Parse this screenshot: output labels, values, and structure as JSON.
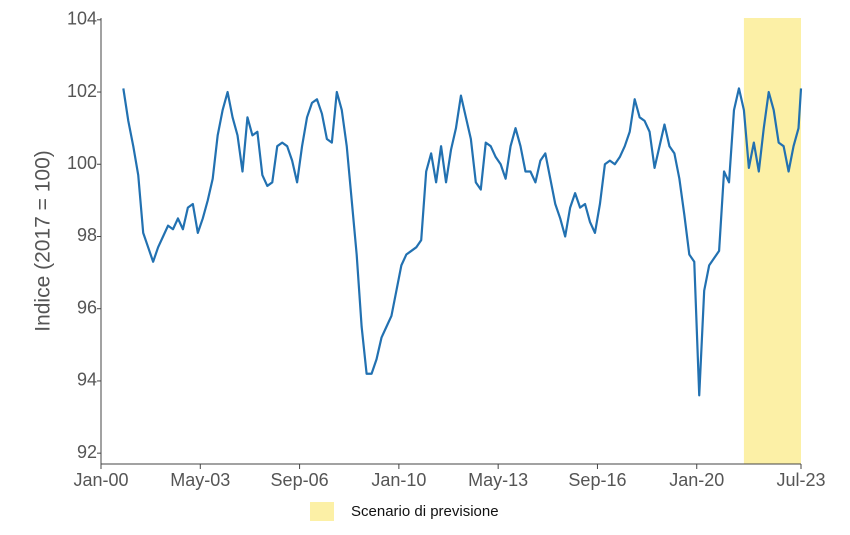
{
  "chart_data": {
    "type": "line",
    "ylabel": "Indice (2017 = 100)",
    "x": [
      "2000-10",
      "2000-12",
      "2001-02",
      "2001-04",
      "2001-06",
      "2001-08",
      "2001-10",
      "2001-12",
      "2002-02",
      "2002-04",
      "2002-06",
      "2002-08",
      "2002-10",
      "2002-12",
      "2003-02",
      "2003-04",
      "2003-06",
      "2003-08",
      "2003-10",
      "2003-12",
      "2004-02",
      "2004-04",
      "2004-06",
      "2004-08",
      "2004-10",
      "2004-12",
      "2005-02",
      "2005-04",
      "2005-06",
      "2005-08",
      "2005-10",
      "2005-12",
      "2006-02",
      "2006-04",
      "2006-06",
      "2006-08",
      "2006-10",
      "2006-12",
      "2007-02",
      "2007-04",
      "2007-06",
      "2007-08",
      "2007-10",
      "2007-12",
      "2008-02",
      "2008-04",
      "2008-06",
      "2008-08",
      "2008-10",
      "2008-12",
      "2009-02",
      "2009-04",
      "2009-06",
      "2009-08",
      "2009-10",
      "2009-12",
      "2010-02",
      "2010-04",
      "2010-06",
      "2010-08",
      "2010-10",
      "2010-12",
      "2011-02",
      "2011-04",
      "2011-06",
      "2011-08",
      "2011-10",
      "2011-12",
      "2012-02",
      "2012-04",
      "2012-06",
      "2012-08",
      "2012-10",
      "2012-12",
      "2013-02",
      "2013-04",
      "2013-06",
      "2013-08",
      "2013-10",
      "2013-12",
      "2014-02",
      "2014-04",
      "2014-06",
      "2014-08",
      "2014-10",
      "2014-12",
      "2015-02",
      "2015-04",
      "2015-06",
      "2015-08",
      "2015-10",
      "2015-12",
      "2016-02",
      "2016-04",
      "2016-06",
      "2016-08",
      "2016-10",
      "2016-12",
      "2017-02",
      "2017-04",
      "2017-06",
      "2017-08",
      "2017-10",
      "2017-12",
      "2018-02",
      "2018-04",
      "2018-06",
      "2018-08",
      "2018-10",
      "2018-12",
      "2019-02",
      "2019-04",
      "2019-06",
      "2019-08",
      "2019-10",
      "2019-12",
      "2020-02",
      "2020-04",
      "2020-06",
      "2020-08",
      "2020-10",
      "2020-12",
      "2021-02",
      "2021-04",
      "2021-06",
      "2021-08",
      "2021-10",
      "2021-12",
      "2022-02",
      "2022-04",
      "2022-06",
      "2022-08",
      "2022-10",
      "2022-12",
      "2023-02",
      "2023-04",
      "2023-06",
      "2023-07"
    ],
    "series": [
      {
        "color": "#2271b1",
        "values": [
          102.1,
          101.2,
          100.5,
          99.7,
          98.1,
          97.7,
          97.3,
          97.7,
          98.0,
          98.3,
          98.2,
          98.5,
          98.2,
          98.8,
          98.9,
          98.1,
          98.5,
          99.0,
          99.6,
          100.8,
          101.5,
          102.0,
          101.3,
          100.8,
          99.8,
          101.3,
          100.8,
          100.9,
          99.7,
          99.4,
          99.5,
          100.5,
          100.6,
          100.5,
          100.1,
          99.5,
          100.5,
          101.3,
          101.7,
          101.8,
          101.4,
          100.7,
          100.6,
          102.0,
          101.5,
          100.5,
          99.0,
          97.5,
          95.5,
          94.2,
          94.2,
          94.6,
          95.2,
          95.5,
          95.8,
          96.5,
          97.2,
          97.5,
          97.6,
          97.7,
          97.9,
          99.8,
          100.3,
          99.5,
          100.5,
          99.5,
          100.4,
          101.0,
          101.9,
          101.3,
          100.7,
          99.5,
          99.3,
          100.6,
          100.5,
          100.2,
          100.0,
          99.6,
          100.5,
          101.0,
          100.5,
          99.8,
          99.8,
          99.5,
          100.1,
          100.3,
          99.6,
          98.9,
          98.5,
          98.0,
          98.8,
          99.2,
          98.8,
          98.9,
          98.4,
          98.1,
          98.9,
          100.0,
          100.1,
          100.0,
          100.2,
          100.5,
          100.9,
          101.8,
          101.3,
          101.2,
          100.9,
          99.9,
          100.5,
          101.1,
          100.5,
          100.3,
          99.6,
          98.6,
          97.5,
          97.3,
          93.6,
          96.5,
          97.2,
          97.4,
          97.6,
          99.8,
          99.5,
          101.5,
          102.1,
          101.5,
          99.9,
          100.6,
          99.8,
          101.0,
          102.0,
          101.5,
          100.6,
          100.5,
          99.8,
          100.5,
          101.0,
          102.1
        ]
      }
    ],
    "band": {
      "name": "Scenario di previsione",
      "color": "#fcf0a6",
      "x": [
        "2021-08",
        "2023-07"
      ]
    },
    "xlim": [
      "2000-01",
      "2023-07"
    ],
    "xticks": [
      {
        "value": "2000-01",
        "label": "Jan-00"
      },
      {
        "value": "2003-05",
        "label": "May-03"
      },
      {
        "value": "2006-09",
        "label": "Sep-06"
      },
      {
        "value": "2010-01",
        "label": "Jan-10"
      },
      {
        "value": "2013-05",
        "label": "May-13"
      },
      {
        "value": "2016-09",
        "label": "Sep-16"
      },
      {
        "value": "2020-01",
        "label": "Jan-20"
      },
      {
        "value": "2023-07",
        "label": "Jul-23"
      }
    ],
    "ylim": [
      91.7,
      104.05
    ],
    "yticks": [
      92,
      94,
      96,
      98,
      100,
      102,
      104
    ]
  }
}
